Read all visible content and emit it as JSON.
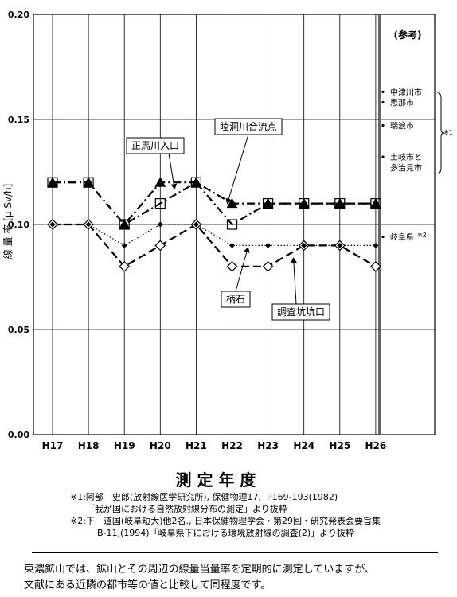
{
  "chart_data": {
    "type": "line",
    "x_title": "測 定 年 度",
    "y_title": "線 量 率 [μ Sv/h]",
    "categories": [
      "H17",
      "H18",
      "H19",
      "H20",
      "H21",
      "H22",
      "H23",
      "H24",
      "H25",
      "H26"
    ],
    "yticks": [
      "0.00",
      "0.05",
      "0.10",
      "0.15",
      "0.20"
    ],
    "ylim": [
      0,
      0.2
    ],
    "grid": true,
    "series": [
      {
        "name": "正馬川入口",
        "marker": "filled-triangle",
        "line": "dash-dot",
        "values": [
          0.12,
          0.12,
          0.1,
          0.12,
          0.12,
          0.11,
          0.11,
          0.11,
          0.11,
          0.11
        ]
      },
      {
        "name": "睦洞川合流点",
        "marker": "open-square",
        "line": "dash-dot",
        "values": [
          0.12,
          0.12,
          0.1,
          0.11,
          0.12,
          0.1,
          0.11,
          0.11,
          0.11,
          0.11
        ]
      },
      {
        "name": "柄石",
        "marker": "filled-diamond",
        "line": "dotted",
        "values": [
          0.1,
          0.1,
          0.09,
          0.1,
          0.1,
          0.09,
          0.09,
          0.09,
          0.09,
          0.09
        ]
      },
      {
        "name": "調査坑坑口",
        "marker": "open-diamond",
        "line": "dashed",
        "values": [
          0.1,
          0.1,
          0.08,
          0.09,
          0.1,
          0.08,
          0.08,
          0.09,
          0.09,
          0.08
        ]
      }
    ],
    "reference": {
      "title": "(参考)",
      "items": [
        {
          "label": "中津川市",
          "value": 0.162
        },
        {
          "label": "恵那市",
          "value": 0.157
        },
        {
          "label": "瑞浪市",
          "value": 0.146
        },
        {
          "label": "土岐市と",
          "value": 0.131
        },
        {
          "label": "多治見市",
          "value": 0.126
        },
        {
          "label": "岐阜県",
          "value": 0.093
        }
      ],
      "note1": "※1",
      "note2": "※2"
    }
  },
  "notes": {
    "n1_line1": "※1:阿部　史郎(放射線医学研究所), 保健物理17,  P169-193(1982)",
    "n1_line2": "「我が国における自然放射線分布の測定」より抜粋",
    "n2_line1": "※2:下　道国(岐阜短大)他2名., 日本保健物理学会・第29回・研究発表会要旨集",
    "n2_line2": "B-11,(1994)「岐阜県下における環境放射線の調査(2)」より抜粋"
  },
  "footer": {
    "line1": "東濃鉱山では、鉱山とその周辺の線量当量率を定期的に測定していますが、",
    "line2": "文献にある近隣の都市等の値と比較して同程度です。"
  }
}
